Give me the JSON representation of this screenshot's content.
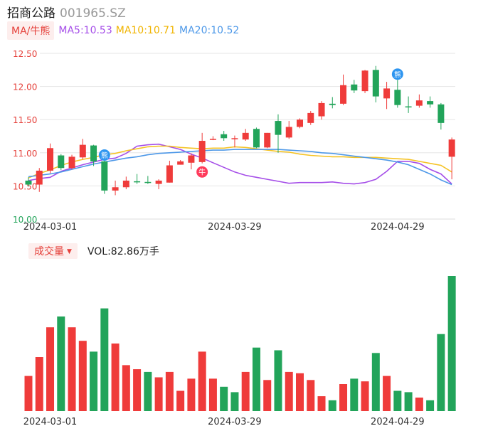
{
  "header": {
    "name": "招商公路",
    "code": "001965.SZ"
  },
  "ma_bar": {
    "tab_label": "MA/牛熊",
    "ma5": "MA5:10.53",
    "ma10": "MA10:10.71",
    "ma20": "MA20:10.52"
  },
  "volume_bar": {
    "tab_label": "成交量",
    "caret": "▼",
    "vol_text": "VOL:82.86万手"
  },
  "colors": {
    "up": "#ef3b3a",
    "down": "#22a45a",
    "ma5": "#a54ee8",
    "ma10": "#f5c325",
    "ma20": "#4d98e8",
    "axis_text": "#e5413b"
  },
  "chart_data": [
    {
      "type": "candlestick",
      "ylim": [
        10.0,
        12.5
      ],
      "y_ticks": [
        "12.50",
        "12.00",
        "11.50",
        "11.00",
        "10.50",
        "10.00"
      ],
      "x_tick_labels": [
        "2024-03-01",
        "2024-03-29",
        "2024-04-29"
      ],
      "x_tick_index": [
        2,
        19,
        34
      ],
      "grid": true,
      "candles": [
        {
          "o": 10.58,
          "c": 10.52,
          "h": 10.63,
          "l": 10.49
        },
        {
          "o": 10.52,
          "c": 10.73,
          "h": 10.77,
          "l": 10.41
        },
        {
          "o": 10.73,
          "c": 11.07,
          "h": 11.14,
          "l": 10.69
        },
        {
          "o": 10.96,
          "c": 10.77,
          "h": 10.98,
          "l": 10.74
        },
        {
          "o": 10.77,
          "c": 10.94,
          "h": 10.97,
          "l": 10.75
        },
        {
          "o": 10.93,
          "c": 11.12,
          "h": 11.21,
          "l": 10.9
        },
        {
          "o": 11.11,
          "c": 10.87,
          "h": 11.12,
          "l": 10.8
        },
        {
          "o": 10.87,
          "c": 10.43,
          "h": 10.88,
          "l": 10.38
        },
        {
          "o": 10.43,
          "c": 10.48,
          "h": 10.58,
          "l": 10.36
        },
        {
          "o": 10.48,
          "c": 10.58,
          "h": 10.64,
          "l": 10.45
        },
        {
          "o": 10.57,
          "c": 10.56,
          "h": 10.68,
          "l": 10.53
        },
        {
          "o": 10.56,
          "c": 10.55,
          "h": 10.65,
          "l": 10.53
        },
        {
          "o": 10.53,
          "c": 10.58,
          "h": 10.6,
          "l": 10.45
        },
        {
          "o": 10.55,
          "c": 10.81,
          "h": 10.88,
          "l": 10.55
        },
        {
          "o": 10.82,
          "c": 10.87,
          "h": 10.89,
          "l": 10.82
        },
        {
          "o": 10.85,
          "c": 10.96,
          "h": 10.99,
          "l": 10.75
        },
        {
          "o": 10.86,
          "c": 11.18,
          "h": 11.3,
          "l": 10.84
        },
        {
          "o": 11.21,
          "c": 11.21,
          "h": 11.25,
          "l": 11.19
        },
        {
          "o": 11.28,
          "c": 11.22,
          "h": 11.33,
          "l": 11.18
        },
        {
          "o": 11.21,
          "c": 11.22,
          "h": 11.26,
          "l": 11.08
        },
        {
          "o": 11.2,
          "c": 11.3,
          "h": 11.36,
          "l": 11.18
        },
        {
          "o": 11.36,
          "c": 11.08,
          "h": 11.38,
          "l": 11.07
        },
        {
          "o": 11.08,
          "c": 11.3,
          "h": 11.3,
          "l": 11.07
        },
        {
          "o": 11.48,
          "c": 11.27,
          "h": 11.58,
          "l": 11.0
        },
        {
          "o": 11.23,
          "c": 11.39,
          "h": 11.48,
          "l": 11.21
        },
        {
          "o": 11.39,
          "c": 11.5,
          "h": 11.52,
          "l": 11.37
        },
        {
          "o": 11.45,
          "c": 11.6,
          "h": 11.63,
          "l": 11.42
        },
        {
          "o": 11.55,
          "c": 11.75,
          "h": 11.78,
          "l": 11.5
        },
        {
          "o": 11.74,
          "c": 11.72,
          "h": 11.84,
          "l": 11.67
        },
        {
          "o": 11.74,
          "c": 12.02,
          "h": 12.18,
          "l": 11.72
        },
        {
          "o": 12.03,
          "c": 11.94,
          "h": 12.1,
          "l": 11.9
        },
        {
          "o": 11.93,
          "c": 12.24,
          "h": 12.25,
          "l": 11.9
        },
        {
          "o": 12.25,
          "c": 11.85,
          "h": 12.31,
          "l": 11.76
        },
        {
          "o": 11.82,
          "c": 11.97,
          "h": 12.07,
          "l": 11.66
        },
        {
          "o": 11.95,
          "c": 11.72,
          "h": 12.1,
          "l": 11.68
        },
        {
          "o": 11.7,
          "c": 11.69,
          "h": 11.85,
          "l": 11.6
        },
        {
          "o": 11.71,
          "c": 11.79,
          "h": 11.88,
          "l": 11.68
        },
        {
          "o": 11.78,
          "c": 11.73,
          "h": 11.85,
          "l": 11.68
        },
        {
          "o": 11.73,
          "c": 11.45,
          "h": 11.75,
          "l": 11.35
        },
        {
          "o": 10.94,
          "c": 11.2,
          "h": 11.23,
          "l": 10.6
        }
      ],
      "series": [
        {
          "name": "MA5",
          "values": [
            10.58,
            10.61,
            10.63,
            10.72,
            10.77,
            10.82,
            10.86,
            10.9,
            10.92,
            10.99,
            11.1,
            11.12,
            11.13,
            11.09,
            11.05,
            10.98,
            10.92,
            10.85,
            10.78,
            10.71,
            10.66,
            10.63,
            10.6,
            10.57,
            10.54,
            10.55,
            10.55,
            10.55,
            10.56,
            10.54,
            10.53,
            10.55,
            10.6,
            10.72,
            10.87,
            10.87,
            10.84,
            10.75,
            10.68,
            10.53
          ]
        },
        {
          "name": "MA10",
          "values": [
            10.62,
            10.69,
            10.74,
            10.81,
            10.86,
            10.9,
            10.93,
            10.97,
            10.99,
            11.03,
            11.06,
            11.09,
            11.1,
            11.1,
            11.08,
            11.07,
            11.06,
            11.07,
            11.07,
            11.09,
            11.08,
            11.06,
            11.04,
            11.02,
            11.01,
            10.98,
            10.96,
            10.95,
            10.94,
            10.94,
            10.93,
            10.93,
            10.93,
            10.92,
            10.91,
            10.9,
            10.87,
            10.84,
            10.81,
            10.71
          ]
        },
        {
          "name": "MA20",
          "values": [
            10.64,
            10.66,
            10.68,
            10.71,
            10.75,
            10.79,
            10.83,
            10.86,
            10.89,
            10.92,
            10.94,
            10.97,
            10.99,
            11.0,
            11.01,
            11.02,
            11.03,
            11.04,
            11.04,
            11.05,
            11.05,
            11.05,
            11.05,
            11.05,
            11.04,
            11.03,
            11.02,
            11.0,
            10.99,
            10.97,
            10.95,
            10.93,
            10.91,
            10.89,
            10.86,
            10.82,
            10.75,
            10.68,
            10.59,
            10.52
          ]
        }
      ],
      "annotations": [
        {
          "index": 7,
          "label": "熊",
          "kind": "bear"
        },
        {
          "index": 16,
          "label": "牛",
          "kind": "bull"
        },
        {
          "index": 34,
          "label": "熊",
          "kind": "bear"
        }
      ]
    },
    {
      "type": "bar",
      "name": "成交量",
      "values": [
        26,
        40,
        62,
        70,
        62,
        52,
        44,
        76,
        50,
        34,
        31,
        29,
        25,
        29,
        15,
        24,
        44,
        24,
        18,
        14,
        29,
        47,
        23,
        45,
        29,
        28,
        23,
        11,
        8,
        20,
        24,
        22,
        43,
        26,
        15,
        14,
        10,
        8,
        57,
        100
      ],
      "directions": [
        "up",
        "up",
        "up",
        "down",
        "up",
        "up",
        "down",
        "down",
        "up",
        "up",
        "up",
        "down",
        "up",
        "up",
        "up",
        "up",
        "up",
        "up",
        "down",
        "down",
        "up",
        "down",
        "up",
        "down",
        "up",
        "up",
        "up",
        "up",
        "down",
        "up",
        "down",
        "up",
        "down",
        "up",
        "down",
        "down",
        "up",
        "down",
        "down",
        "down"
      ]
    }
  ]
}
